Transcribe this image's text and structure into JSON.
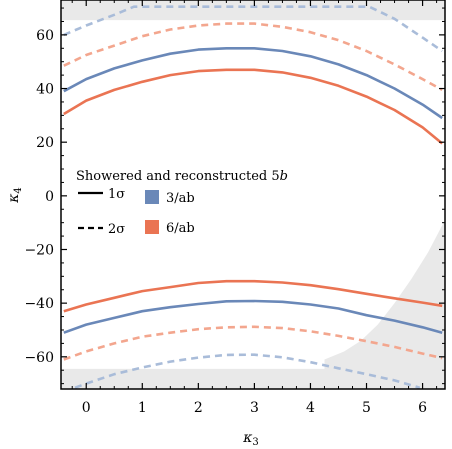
{
  "chart_data": {
    "type": "line",
    "xlabel": "κ",
    "xlabel_sub": "3",
    "ylabel": "κ",
    "ylabel_sub": "4",
    "xlim": [
      -0.45,
      6.4
    ],
    "ylim": [
      -72,
      73
    ],
    "xticks": [
      0,
      1,
      2,
      3,
      4,
      5,
      6
    ],
    "yticks": [
      -60,
      -40,
      -20,
      0,
      20,
      40,
      60
    ],
    "xtick_labels": [
      "0",
      "1",
      "2",
      "3",
      "4",
      "5",
      "6"
    ],
    "ytick_labels": [
      "−60",
      "−40",
      "−20",
      "0",
      "20",
      "40",
      "60"
    ],
    "grid": false,
    "colors": {
      "blue": "#6a88b8",
      "orange": "#ea7453",
      "light_blue": "#a9bcd9",
      "light_orange": "#f3a68e",
      "shade": "#e9e9e9"
    },
    "excluded_regions": {
      "top_band_y": [
        65.5,
        73
      ],
      "bottom_band_y": [
        -72,
        -64.5
      ],
      "lower_right_boundary": {
        "x": [
          4.25,
          4.6,
          4.9,
          5.2,
          5.5,
          5.8,
          6.1,
          6.4
        ],
        "y": [
          -61,
          -58,
          -54,
          -48,
          -40,
          -31,
          -21,
          -9
        ]
      }
    },
    "legend": {
      "title": "Showered and reconstructed 5",
      "title_var": "b",
      "styles": [
        {
          "label": "1σ",
          "linestyle": "solid"
        },
        {
          "label": "2σ",
          "linestyle": "dashed"
        }
      ],
      "datasets": [
        {
          "label": "3/ab",
          "color": "#6a88b8"
        },
        {
          "label": "6/ab",
          "color": "#ea7453"
        }
      ]
    },
    "x": [
      -0.4,
      0.0,
      0.5,
      1.0,
      1.5,
      2.0,
      2.5,
      3.0,
      3.5,
      4.0,
      4.5,
      5.0,
      5.5,
      6.0,
      6.35
    ],
    "series": [
      {
        "luminosity": "3/ab",
        "level": "1σ",
        "branch": "upper",
        "color": "#6a88b8",
        "dashed": false,
        "y": [
          39,
          43.5,
          47.5,
          50.5,
          53,
          54.5,
          55,
          55,
          54,
          52,
          49,
          45,
          40,
          34,
          29
        ]
      },
      {
        "luminosity": "3/ab",
        "level": "1σ",
        "branch": "lower",
        "color": "#6a88b8",
        "dashed": false,
        "y": [
          -51,
          -48,
          -45.5,
          -43,
          -41.5,
          -40.3,
          -39.3,
          -39.2,
          -39.5,
          -40.5,
          -42,
          -44.5,
          -46.5,
          -49,
          -51
        ]
      },
      {
        "luminosity": "6/ab",
        "level": "1σ",
        "branch": "upper",
        "color": "#ea7453",
        "dashed": false,
        "y": [
          30.5,
          35.5,
          39.5,
          42.5,
          45,
          46.5,
          47,
          47,
          46,
          44,
          41,
          37,
          32,
          25.5,
          19.5
        ]
      },
      {
        "luminosity": "6/ab",
        "level": "1σ",
        "branch": "lower",
        "color": "#ea7453",
        "dashed": false,
        "y": [
          -43,
          -40.5,
          -38,
          -35.5,
          -34,
          -32.5,
          -31.8,
          -31.8,
          -32.3,
          -33.3,
          -34.8,
          -36.5,
          -38.2,
          -39.8,
          -41
        ]
      },
      {
        "luminosity": "3/ab",
        "level": "2σ",
        "branch": "upper",
        "color": "#a9bcd9",
        "dashed": true,
        "x": [
          -0.4,
          0.0,
          0.5,
          0.85,
          5.05,
          5.5,
          6.0,
          6.35
        ],
        "y": [
          60,
          63.5,
          67.5,
          70.5,
          70.5,
          66,
          59,
          54
        ]
      },
      {
        "luminosity": "3/ab",
        "level": "2σ",
        "branch": "lower",
        "color": "#a9bcd9",
        "dashed": true,
        "x": [
          -0.2,
          0.0,
          0.5,
          1.0,
          1.5,
          2.0,
          2.5,
          3.0,
          3.5,
          4.0,
          4.5,
          5.0,
          5.5,
          5.95
        ],
        "y": [
          -71.5,
          -70,
          -66.5,
          -64,
          -61.8,
          -60.3,
          -59.3,
          -59.2,
          -60.2,
          -62,
          -64.3,
          -66.5,
          -68.8,
          -71.5
        ]
      },
      {
        "luminosity": "6/ab",
        "level": "2σ",
        "branch": "upper",
        "color": "#f3a68e",
        "dashed": true,
        "y": [
          48.5,
          52.5,
          56,
          59.5,
          62,
          63.5,
          64.2,
          64.2,
          63,
          61,
          58,
          54,
          49,
          43.5,
          39.5
        ]
      },
      {
        "luminosity": "6/ab",
        "level": "2σ",
        "branch": "lower",
        "color": "#f3a68e",
        "dashed": true,
        "y": [
          -61,
          -58,
          -55,
          -52.5,
          -51,
          -49.7,
          -49,
          -48.8,
          -49.3,
          -50.5,
          -52.2,
          -54.2,
          -56.3,
          -58.8,
          -60.5
        ]
      }
    ]
  }
}
